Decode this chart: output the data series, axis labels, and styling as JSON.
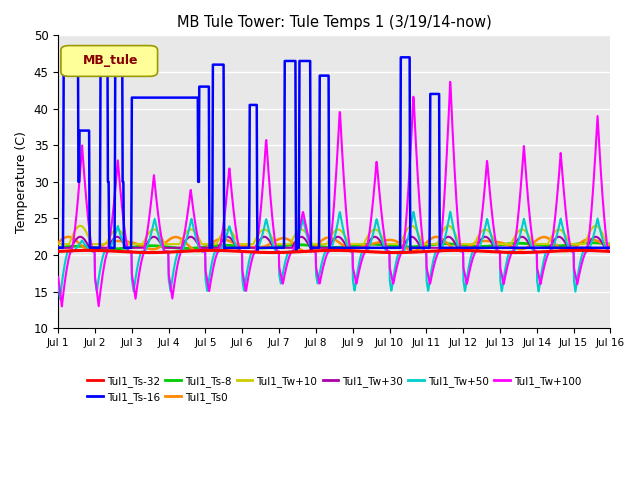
{
  "title": "MB Tule Tower: Tule Temps 1 (3/19/14-now)",
  "ylabel": "Temperature (C)",
  "xlim": [
    0,
    15
  ],
  "ylim": [
    10,
    50
  ],
  "yticks": [
    10,
    15,
    20,
    25,
    30,
    35,
    40,
    45,
    50
  ],
  "xtick_labels": [
    "Jul 1",
    "Jul 2",
    "Jul 3",
    "Jul 4",
    "Jul 5",
    "Jul 6",
    "Jul 7",
    "Jul 8",
    "Jul 9",
    "Jul 10",
    "Jul 11",
    "Jul 12",
    "Jul 13",
    "Jul 14",
    "Jul 15",
    "Jul 16"
  ],
  "bg_color": "#e8e8e8",
  "legend_label": "MB_tule",
  "series": {
    "Tul1_Ts-32": {
      "color": "#ff0000",
      "lw": 2.2,
      "zorder": 5
    },
    "Tul1_Ts-16": {
      "color": "#0000ff",
      "lw": 1.8,
      "zorder": 4
    },
    "Tul1_Ts-8": {
      "color": "#00cc00",
      "lw": 2.0,
      "zorder": 3
    },
    "Tul1_Ts0": {
      "color": "#ff8800",
      "lw": 1.8,
      "zorder": 3
    },
    "Tul1_Tw+10": {
      "color": "#cccc00",
      "lw": 1.5,
      "zorder": 3
    },
    "Tul1_Tw+30": {
      "color": "#aa00aa",
      "lw": 1.5,
      "zorder": 3
    },
    "Tul1_Tw+50": {
      "color": "#00cccc",
      "lw": 1.5,
      "zorder": 3
    },
    "Tul1_Tw+100": {
      "color": "#ff00ff",
      "lw": 1.5,
      "zorder": 3
    }
  }
}
